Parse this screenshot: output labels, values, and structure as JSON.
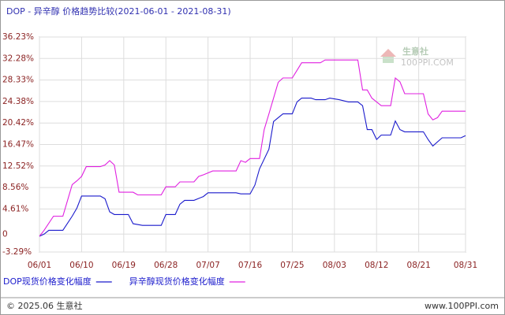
{
  "chart_data": {
    "type": "line",
    "title": "DOP - 异辛醇 价格趋势比较(2021-06-01 - 2021-08-31)",
    "watermark": {
      "name": "生意社",
      "site": "100PPI.COM"
    },
    "footer": {
      "left": "© 2025.06 生意社",
      "right": "www.100PPI.com"
    },
    "ylim": [
      -3.29,
      36.23
    ],
    "yticks": [
      {
        "value": 36.23,
        "label": "36.23%"
      },
      {
        "value": 32.28,
        "label": "32.28%"
      },
      {
        "value": 28.33,
        "label": "28.33%"
      },
      {
        "value": 24.38,
        "label": "24.38%"
      },
      {
        "value": 20.42,
        "label": "20.42%"
      },
      {
        "value": 16.47,
        "label": "16.47%"
      },
      {
        "value": 12.52,
        "label": "12.52%"
      },
      {
        "value": 8.56,
        "label": "8.56%"
      },
      {
        "value": 4.61,
        "label": "4.61%"
      },
      0,
      {
        "value": -3.29,
        "label": "-3.29%"
      }
    ],
    "xticks": [
      "06/01",
      "06/10",
      "06/19",
      "06/28",
      "07/07",
      "07/16",
      "07/25",
      "08/03",
      "08/12",
      "08/21",
      "08/31"
    ],
    "grid": true,
    "series": [
      {
        "name": "DOP现货价格变化幅度",
        "color": "#1a1acc",
        "x": [
          "06/01",
          "06/02",
          "06/03",
          "06/06",
          "06/08",
          "06/09",
          "06/10",
          "06/14",
          "06/15",
          "06/16",
          "06/17",
          "06/20",
          "06/21",
          "06/23",
          "06/27",
          "06/28",
          "06/30",
          "07/01",
          "07/02",
          "07/04",
          "07/06",
          "07/07",
          "07/13",
          "07/14",
          "07/16",
          "07/17",
          "07/18",
          "07/20",
          "07/21",
          "07/22",
          "07/23",
          "07/25",
          "07/26",
          "07/27",
          "07/29",
          "07/30",
          "08/01",
          "08/02",
          "08/04",
          "08/06",
          "08/08",
          "08/09",
          "08/10",
          "08/11",
          "08/12",
          "08/13",
          "08/15",
          "08/16",
          "08/17",
          "08/18",
          "08/22",
          "08/23",
          "08/24",
          "08/26",
          "08/30",
          "08/31"
        ],
        "values": [
          -0.4,
          0,
          0.7,
          0.7,
          3.3,
          4.8,
          7.0,
          7.0,
          6.5,
          4.1,
          3.6,
          3.6,
          1.9,
          1.6,
          1.6,
          3.6,
          3.6,
          5.5,
          6.2,
          6.2,
          6.9,
          7.6,
          7.6,
          7.4,
          7.4,
          9.0,
          12.0,
          15.6,
          20.7,
          21.4,
          22.1,
          22.1,
          24.3,
          25.0,
          25.0,
          24.7,
          24.7,
          25.0,
          24.7,
          24.3,
          24.3,
          23.6,
          19.2,
          19.2,
          17.4,
          18.2,
          18.2,
          20.8,
          19.2,
          18.8,
          18.8,
          17.4,
          16.2,
          17.7,
          17.7,
          18.1
        ]
      },
      {
        "name": "异辛醇现货价格变化幅度",
        "color": "#e020e0",
        "x": [
          "06/01",
          "06/02",
          "06/04",
          "06/06",
          "06/08",
          "06/09",
          "06/10",
          "06/11",
          "06/14",
          "06/15",
          "06/16",
          "06/17",
          "06/18",
          "06/21",
          "06/22",
          "06/27",
          "06/28",
          "06/30",
          "07/01",
          "07/04",
          "07/05",
          "07/06",
          "07/08",
          "07/13",
          "07/14",
          "07/15",
          "07/16",
          "07/18",
          "07/19",
          "07/20",
          "07/22",
          "07/23",
          "07/25",
          "07/26",
          "07/27",
          "07/31",
          "08/01",
          "08/08",
          "08/09",
          "08/10",
          "08/11",
          "08/13",
          "08/15",
          "08/16",
          "08/17",
          "08/18",
          "08/22",
          "08/23",
          "08/24",
          "08/25",
          "08/26",
          "08/31"
        ],
        "values": [
          -0.4,
          0.7,
          3.3,
          3.3,
          9.1,
          9.8,
          10.6,
          12.4,
          12.4,
          12.7,
          13.5,
          12.7,
          7.7,
          7.7,
          7.2,
          7.2,
          8.7,
          8.7,
          9.6,
          9.6,
          10.6,
          10.9,
          11.6,
          11.6,
          13.5,
          13.2,
          13.9,
          13.9,
          19.2,
          22.1,
          27.9,
          28.7,
          28.7,
          30.1,
          31.5,
          31.5,
          32.0,
          32.0,
          26.5,
          26.5,
          25.0,
          23.6,
          23.6,
          28.7,
          28.0,
          25.8,
          25.8,
          22.1,
          21.0,
          21.4,
          22.6,
          22.6
        ]
      }
    ]
  }
}
